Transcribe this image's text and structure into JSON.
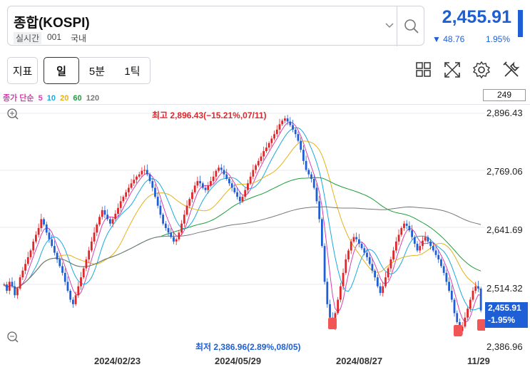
{
  "header": {
    "title": "종합(KOSPI)",
    "realtime_tag": "실시간",
    "code": "001",
    "market": "국내",
    "price": "2,455.91",
    "change": "48.76",
    "change_pct": "1.95%",
    "change_direction": "down",
    "colors": {
      "down": "#1f5fd6",
      "up": "#e0262b"
    }
  },
  "toolbar": {
    "indicator_label": "지표",
    "period_tabs": [
      {
        "label": "일",
        "selected": true
      },
      {
        "label": "5분",
        "selected": false
      },
      {
        "label": "1틱",
        "selected": false
      }
    ],
    "tools": [
      "grid-layout-icon",
      "expand-icon",
      "settings-icon",
      "tools-icon"
    ]
  },
  "chart": {
    "legend_label": "종가 단순",
    "ma_periods": [
      {
        "label": "5",
        "color": "#d63fb0"
      },
      {
        "label": "10",
        "color": "#1aa9e0"
      },
      {
        "label": "20",
        "color": "#e3b21b"
      },
      {
        "label": "60",
        "color": "#1e9e3a"
      },
      {
        "label": "120",
        "color": "#777777"
      }
    ],
    "latest_box": "249",
    "price_tag": {
      "price": "2,455.91",
      "pct": "-1.95%"
    },
    "high_annotation": "최고 2,896.43(−15.21%,07/11)",
    "low_annotation": "최저 2,386.96(2.89%,08/05)"
  },
  "chart_data": {
    "type": "candlestick",
    "y_ticks": [
      "2,896.43",
      "2,769.06",
      "2,641.69",
      "2,514.32",
      "2,386.96"
    ],
    "x_ticks": [
      "2024/02/23",
      "2024/05/29",
      "2024/08/27",
      "11/29"
    ],
    "ylim": [
      2386.96,
      2896.43
    ],
    "grid": true,
    "closes": [
      2514,
      2500,
      2520,
      2510,
      2490,
      2505,
      2530,
      2545,
      2560,
      2575,
      2590,
      2610,
      2625,
      2640,
      2660,
      2648,
      2630,
      2615,
      2600,
      2585,
      2570,
      2555,
      2540,
      2520,
      2500,
      2480,
      2470,
      2490,
      2510,
      2530,
      2550,
      2570,
      2590,
      2610,
      2630,
      2648,
      2665,
      2680,
      2670,
      2660,
      2650,
      2660,
      2672,
      2685,
      2700,
      2710,
      2720,
      2730,
      2740,
      2748,
      2755,
      2760,
      2768,
      2770,
      2760,
      2745,
      2730,
      2710,
      2690,
      2670,
      2650,
      2640,
      2630,
      2620,
      2610,
      2615,
      2630,
      2650,
      2670,
      2690,
      2705,
      2720,
      2735,
      2745,
      2740,
      2730,
      2725,
      2735,
      2745,
      2755,
      2768,
      2775,
      2770,
      2760,
      2750,
      2740,
      2730,
      2720,
      2710,
      2700,
      2710,
      2725,
      2740,
      2755,
      2770,
      2780,
      2790,
      2800,
      2812,
      2820,
      2830,
      2840,
      2850,
      2860,
      2872,
      2880,
      2885,
      2878,
      2870,
      2860,
      2850,
      2835,
      2815,
      2790,
      2770,
      2760,
      2750,
      2730,
      2700,
      2660,
      2600,
      2520,
      2470,
      2440,
      2420,
      2450,
      2480,
      2510,
      2540,
      2570,
      2590,
      2610,
      2620,
      2615,
      2605,
      2595,
      2585,
      2575,
      2560,
      2545,
      2530,
      2510,
      2495,
      2510,
      2530,
      2550,
      2570,
      2590,
      2610,
      2625,
      2640,
      2650,
      2645,
      2635,
      2620,
      2605,
      2590,
      2600,
      2612,
      2620,
      2610,
      2600,
      2590,
      2580,
      2570,
      2555,
      2540,
      2520,
      2500,
      2480,
      2450,
      2430,
      2410,
      2420,
      2440,
      2460,
      2480,
      2500,
      2510,
      2505,
      2455.91
    ],
    "series": [
      {
        "name": "5",
        "type": "line"
      },
      {
        "name": "10",
        "type": "line"
      },
      {
        "name": "20",
        "type": "line"
      },
      {
        "name": "60",
        "type": "line"
      },
      {
        "name": "120",
        "type": "line"
      }
    ]
  }
}
